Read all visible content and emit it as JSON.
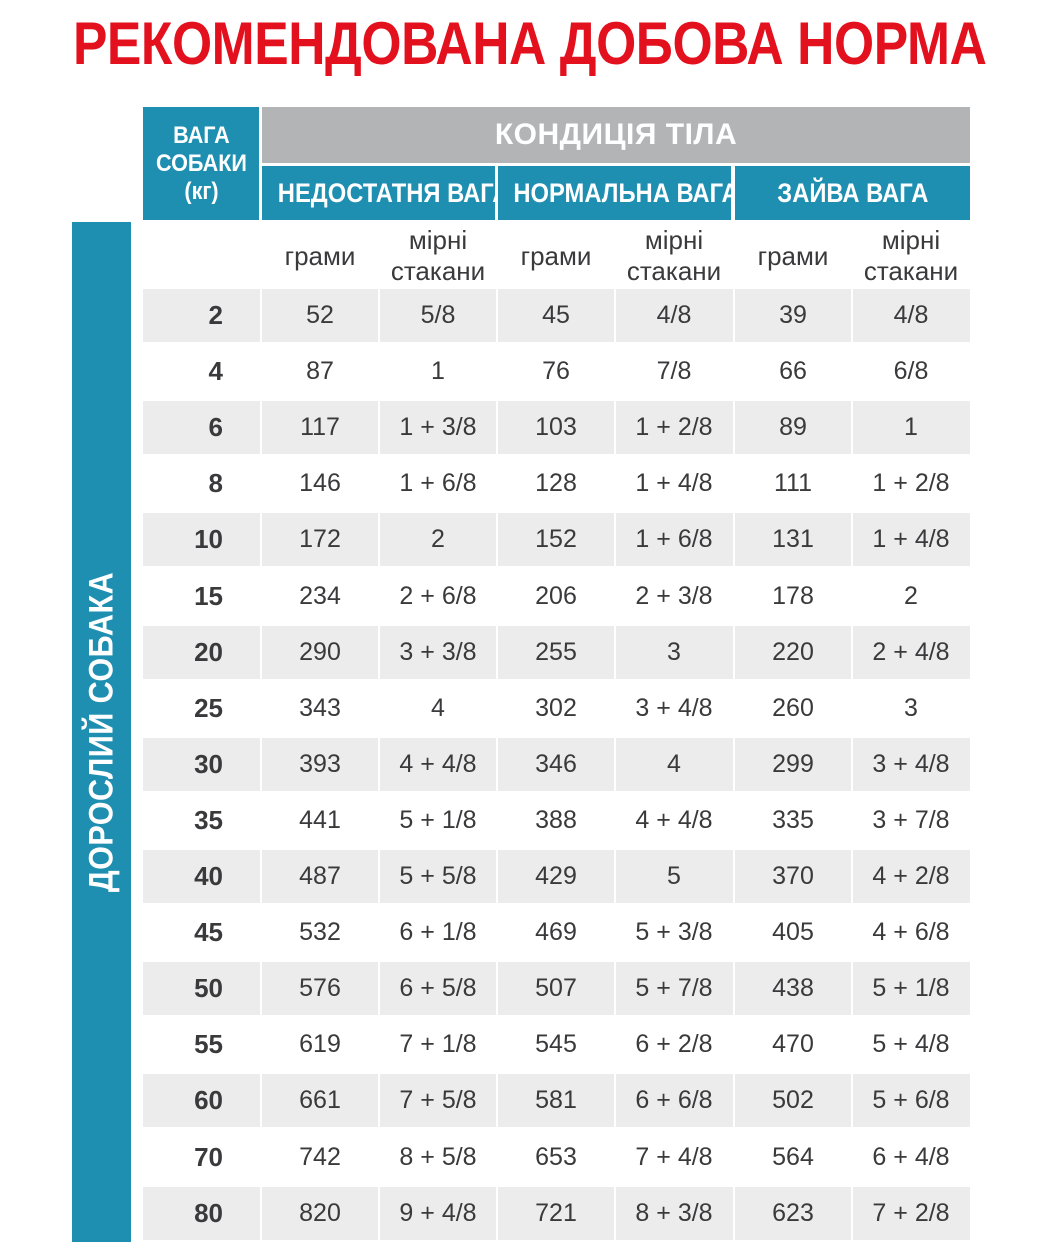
{
  "title": "РЕКОМЕНДОВАНА ДОБОВА НОРМА",
  "side_label": "ДОРОСЛИЙ СОБАКА",
  "header": {
    "weight_label": "ВАГА\nСОБАКИ\n(кг)",
    "condition_label": "КОНДИЦІЯ ТІЛА",
    "groups": [
      "НЕДОСТАТНЯ ВАГА",
      "НОРМАЛЬНА ВАГА",
      "ЗАЙВА ВАГА"
    ],
    "sub_grams": "грами",
    "sub_cups": "мірні\nстакани"
  },
  "rows": [
    {
      "w": "2",
      "v": [
        "52",
        "5/8",
        "45",
        "4/8",
        "39",
        "4/8"
      ]
    },
    {
      "w": "4",
      "v": [
        "87",
        "1",
        "76",
        "7/8",
        "66",
        "6/8"
      ]
    },
    {
      "w": "6",
      "v": [
        "117",
        "1 + 3/8",
        "103",
        "1 + 2/8",
        "89",
        "1"
      ]
    },
    {
      "w": "8",
      "v": [
        "146",
        "1 + 6/8",
        "128",
        "1 + 4/8",
        "111",
        "1 + 2/8"
      ]
    },
    {
      "w": "10",
      "v": [
        "172",
        "2",
        "152",
        "1 + 6/8",
        "131",
        "1 + 4/8"
      ]
    },
    {
      "w": "15",
      "v": [
        "234",
        "2 + 6/8",
        "206",
        "2 + 3/8",
        "178",
        "2"
      ]
    },
    {
      "w": "20",
      "v": [
        "290",
        "3 + 3/8",
        "255",
        "3",
        "220",
        "2 + 4/8"
      ]
    },
    {
      "w": "25",
      "v": [
        "343",
        "4",
        "302",
        "3 + 4/8",
        "260",
        "3"
      ]
    },
    {
      "w": "30",
      "v": [
        "393",
        "4 + 4/8",
        "346",
        "4",
        "299",
        "3 + 4/8"
      ]
    },
    {
      "w": "35",
      "v": [
        "441",
        "5 + 1/8",
        "388",
        "4 + 4/8",
        "335",
        "3 + 7/8"
      ]
    },
    {
      "w": "40",
      "v": [
        "487",
        "5 + 5/8",
        "429",
        "5",
        "370",
        "4 + 2/8"
      ]
    },
    {
      "w": "45",
      "v": [
        "532",
        "6 + 1/8",
        "469",
        "5 + 3/8",
        "405",
        "4 + 6/8"
      ]
    },
    {
      "w": "50",
      "v": [
        "576",
        "6 + 5/8",
        "507",
        "5 + 7/8",
        "438",
        "5 + 1/8"
      ]
    },
    {
      "w": "55",
      "v": [
        "619",
        "7 + 1/8",
        "545",
        "6 + 2/8",
        "470",
        "5 + 4/8"
      ]
    },
    {
      "w": "60",
      "v": [
        "661",
        "7 + 5/8",
        "581",
        "6 + 6/8",
        "502",
        "5 + 6/8"
      ]
    },
    {
      "w": "70",
      "v": [
        "742",
        "8 + 5/8",
        "653",
        "7 + 4/8",
        "564",
        "6 + 4/8"
      ]
    },
    {
      "w": "80",
      "v": [
        "820",
        "9 + 4/8",
        "721",
        "8 + 3/8",
        "623",
        "7 + 2/8"
      ]
    }
  ],
  "colors": {
    "title": "#e3101d",
    "blue": "#1e8fb1",
    "grey": "#b3b4b6",
    "shade": "#ececec"
  }
}
